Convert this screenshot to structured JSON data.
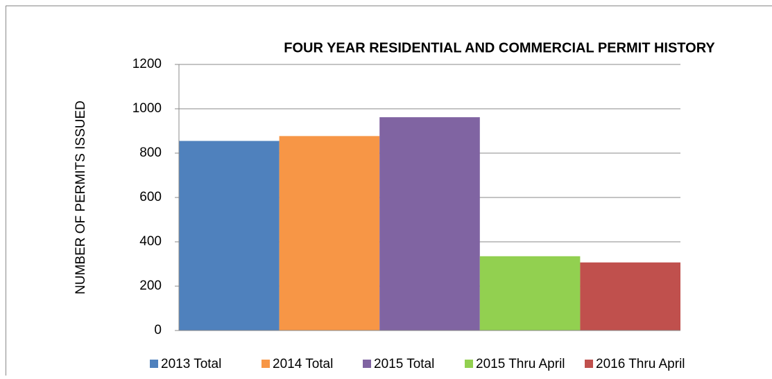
{
  "chart_data": {
    "type": "bar",
    "title": "FOUR YEAR RESIDENTIAL AND COMMERCIAL PERMIT HISTORY",
    "y_label": "NUMBER OF PERMITS ISSUED",
    "series": [
      {
        "name": "2013 Total",
        "color": "#4f81bd",
        "values": [
          855
        ]
      },
      {
        "name": "2014 Total",
        "color": "#f79646",
        "values": [
          877
        ]
      },
      {
        "name": "2015 Total",
        "color": "#8064a2",
        "values": [
          962
        ]
      },
      {
        "name": "2015 Thru April",
        "color": "#92d050",
        "values": [
          335
        ]
      },
      {
        "name": "2016 Thru April",
        "color": "#c0504d",
        "values": [
          307
        ]
      }
    ],
    "ylim": [
      0,
      1200
    ],
    "yticks": [
      0,
      200,
      400,
      600,
      800,
      1000,
      1200
    ],
    "grid": true,
    "legend": "bottom"
  }
}
